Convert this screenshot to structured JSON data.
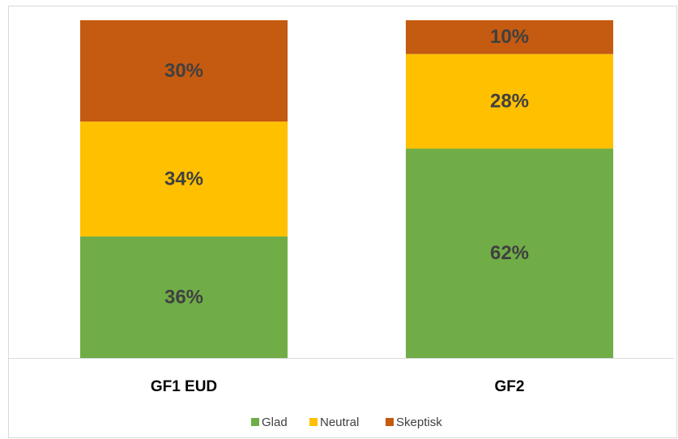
{
  "chart_data": {
    "type": "bar",
    "stacked": true,
    "categories": [
      "GF1 EUD",
      "GF2"
    ],
    "series": [
      {
        "name": "Glad",
        "color": "#70ad47",
        "values": [
          36,
          62
        ],
        "value_labels": [
          "36%",
          "62%"
        ]
      },
      {
        "name": "Neutral",
        "color": "#ffc000",
        "values": [
          34,
          28
        ],
        "value_labels": [
          "34%",
          "28%"
        ]
      },
      {
        "name": "Skeptisk",
        "color": "#c55a11",
        "values": [
          30,
          10
        ],
        "value_labels": [
          "30%",
          "10%"
        ]
      }
    ],
    "ylim": [
      0,
      100
    ],
    "legend": "bottom"
  }
}
